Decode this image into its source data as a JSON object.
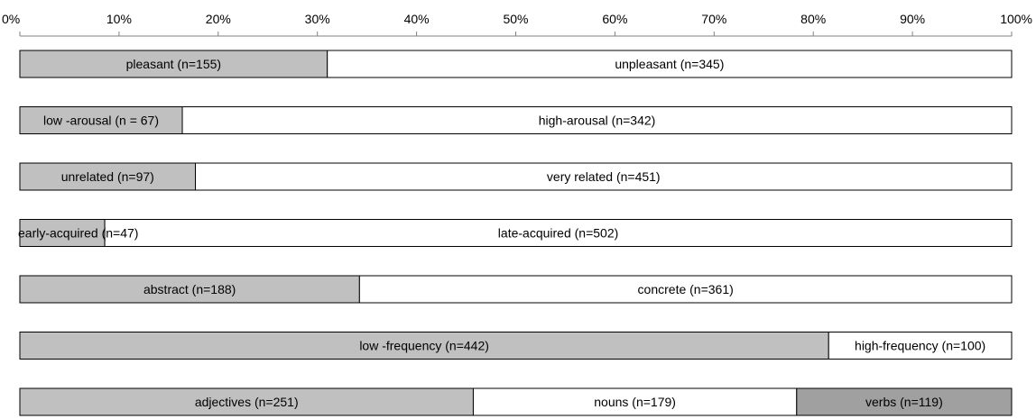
{
  "chart_data": {
    "type": "bar",
    "orientation": "horizontal",
    "stacked": "percent",
    "xlim": [
      0,
      100
    ],
    "x_ticks": [
      "0%",
      "10%",
      "20%",
      "30%",
      "40%",
      "50%",
      "60%",
      "70%",
      "80%",
      "90%",
      "100%"
    ],
    "grid": false,
    "rows": [
      {
        "segments": [
          {
            "label": "pleasant (n=155)",
            "value": 155,
            "color": "#c0c0c0"
          },
          {
            "label": "unpleasant (n=345)",
            "value": 345,
            "color": "#ffffff"
          }
        ]
      },
      {
        "segments": [
          {
            "label": "low -arousal (n = 67)",
            "value": 67,
            "color": "#c0c0c0"
          },
          {
            "label": "high-arousal (n=342)",
            "value": 342,
            "color": "#ffffff"
          }
        ]
      },
      {
        "segments": [
          {
            "label": "unrelated (n=97)",
            "value": 97,
            "color": "#c0c0c0"
          },
          {
            "label": "very related (n=451)",
            "value": 451,
            "color": "#ffffff"
          }
        ]
      },
      {
        "segments": [
          {
            "label": "early-acquired (n=47)",
            "value": 47,
            "color": "#c0c0c0"
          },
          {
            "label": "late-acquired (n=502)",
            "value": 502,
            "color": "#ffffff"
          }
        ]
      },
      {
        "segments": [
          {
            "label": "abstract (n=188)",
            "value": 188,
            "color": "#c0c0c0"
          },
          {
            "label": "concrete (n=361)",
            "value": 361,
            "color": "#ffffff"
          }
        ]
      },
      {
        "segments": [
          {
            "label": "low -frequency (n=442)",
            "value": 442,
            "color": "#c0c0c0"
          },
          {
            "label": "high-frequency (n=100)",
            "value": 100,
            "color": "#ffffff"
          }
        ]
      },
      {
        "segments": [
          {
            "label": "adjectives (n=251)",
            "value": 251,
            "color": "#c0c0c0"
          },
          {
            "label": "nouns (n=179)",
            "value": 179,
            "color": "#ffffff"
          },
          {
            "label": "verbs (n=119)",
            "value": 119,
            "color": "#a0a0a0"
          }
        ]
      }
    ]
  }
}
